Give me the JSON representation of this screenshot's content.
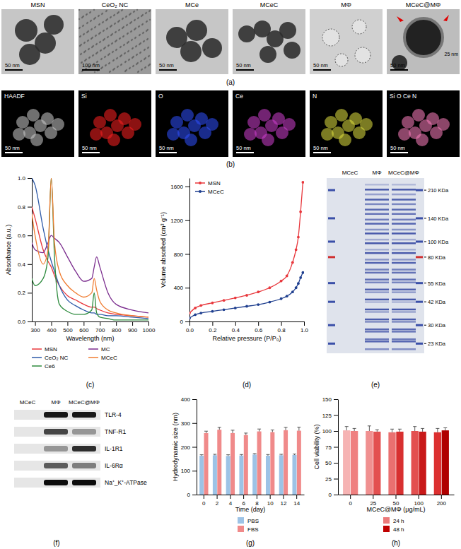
{
  "images": {
    "a": {
      "label": "(a)",
      "items": [
        {
          "title": "MSN",
          "scale_bar": "50 nm"
        },
        {
          "title": "CeO₂ NC",
          "scale_bar": "100 nm"
        },
        {
          "title": "MCe",
          "scale_bar": "50 nm"
        },
        {
          "title": "MCeC",
          "scale_bar": "50 nm"
        },
        {
          "title": "MΦ",
          "scale_bar": "50 nm"
        },
        {
          "title": "MCeC@MΦ",
          "scale_bar": "50 nm",
          "inset_scale_bar": "25 nm"
        }
      ]
    },
    "b": {
      "label": "(b)",
      "items": [
        {
          "title": "HAADF",
          "scale_bar": "50 nm"
        },
        {
          "title": "Si",
          "scale_bar": "50 nm"
        },
        {
          "title": "O",
          "scale_bar": "50 nm"
        },
        {
          "title": "Ce",
          "scale_bar": "50 nm"
        },
        {
          "title": "N",
          "scale_bar": "50 nm"
        },
        {
          "title": "Si O Ce N",
          "scale_bar": "50 nm"
        }
      ]
    },
    "e": {
      "label": "(e)",
      "lanes": [
        "MCeC",
        "MΦ",
        "MCeC@MΦ"
      ],
      "markers": [
        {
          "value": 210,
          "label": "210 KDa"
        },
        {
          "value": 140,
          "label": "140 KDa"
        },
        {
          "value": 100,
          "label": "100 KDa"
        },
        {
          "value": 80,
          "label": "80 KDa"
        },
        {
          "value": 55,
          "label": "55 KDa"
        },
        {
          "value": 42,
          "label": "42 KDa"
        },
        {
          "value": 30,
          "label": "30 KDa"
        },
        {
          "value": 23,
          "label": "23 KDa"
        }
      ]
    },
    "f": {
      "label": "(f)",
      "lanes": [
        "MCeC",
        "MΦ",
        "MCeC@MΦ"
      ],
      "rows": [
        "TLR-4",
        "TNF-R1",
        "IL-1R1",
        "IL-6Rα",
        "Na⁺_K⁺-ATPase"
      ]
    }
  },
  "chart_data": [
    {
      "type": "line",
      "title": "(c)",
      "x_label": "Wavelength (nm)",
      "y_label": "Absorbance (a.u.)",
      "x": [
        280,
        300,
        350,
        380,
        400,
        420,
        450,
        500,
        550,
        600,
        650,
        665,
        680,
        700,
        750,
        800,
        900,
        1000
      ],
      "xlim": [
        280,
        1000
      ],
      "xticks": [
        300,
        400,
        500,
        600,
        700,
        800,
        900,
        1000
      ],
      "ylim": [
        0,
        1.0
      ],
      "yticks": [
        {
          "value": 0,
          "label": "0.0"
        },
        {
          "value": 0.2,
          "label": "0.2"
        },
        {
          "value": 0.4,
          "label": "0.4"
        },
        {
          "value": 0.6,
          "label": "0.6"
        },
        {
          "value": 0.8,
          "label": "0.8"
        },
        {
          "value": 1.0,
          "label": "1.0"
        }
      ],
      "legend": "bottom",
      "series": [
        {
          "name": "MSN",
          "color": "#e8383d",
          "values": [
            0.8,
            0.72,
            0.5,
            0.42,
            0.38,
            0.32,
            0.25,
            0.18,
            0.15,
            0.12,
            0.1,
            0.1,
            0.09,
            0.08,
            0.06,
            0.05,
            0.04,
            0.03
          ]
        },
        {
          "name": "CeO₂ NC",
          "color": "#2e5aa8",
          "values": [
            1.0,
            0.95,
            0.65,
            0.5,
            0.42,
            0.35,
            0.25,
            0.15,
            0.11,
            0.08,
            0.06,
            0.06,
            0.05,
            0.05,
            0.04,
            0.04,
            0.03,
            0.02
          ]
        },
        {
          "name": "Ce6",
          "color": "#2e8b3e",
          "values": [
            0.3,
            0.25,
            0.3,
            0.45,
            1.0,
            0.45,
            0.12,
            0.07,
            0.05,
            0.05,
            0.08,
            0.2,
            0.06,
            0.03,
            0.02,
            0.01,
            0.01,
            0.01
          ]
        },
        {
          "name": "MC",
          "color": "#7b2d8e",
          "values": [
            0.55,
            0.5,
            0.48,
            0.55,
            0.6,
            0.58,
            0.55,
            0.45,
            0.35,
            0.28,
            0.3,
            0.38,
            0.45,
            0.38,
            0.2,
            0.12,
            0.08,
            0.06
          ]
        },
        {
          "name": "MCeC",
          "color": "#f07d32",
          "values": [
            0.75,
            0.6,
            0.4,
            0.5,
            1.0,
            0.55,
            0.35,
            0.25,
            0.2,
            0.17,
            0.2,
            0.3,
            0.22,
            0.14,
            0.08,
            0.06,
            0.04,
            0.03
          ]
        }
      ]
    },
    {
      "type": "line",
      "title": "(d)",
      "x_label": "Relative pressure (P/P₀)",
      "y_label": "Volume absorbed (cm³ g⁻¹)",
      "x": [
        0,
        0.05,
        0.1,
        0.2,
        0.3,
        0.4,
        0.5,
        0.6,
        0.7,
        0.8,
        0.85,
        0.9,
        0.93,
        0.95,
        0.97,
        0.99
      ],
      "xlim": [
        0,
        1.0
      ],
      "xticks": [
        {
          "value": 0,
          "label": "0.0"
        },
        {
          "value": 0.2,
          "label": "0.2"
        },
        {
          "value": 0.4,
          "label": "0.4"
        },
        {
          "value": 0.6,
          "label": "0.6"
        },
        {
          "value": 0.8,
          "label": "0.8"
        },
        {
          "value": 1.0,
          "label": "1.0"
        }
      ],
      "ylim": [
        0,
        1700
      ],
      "yticks": [
        0,
        400,
        800,
        1200,
        1600
      ],
      "legend": "upper left",
      "series": [
        {
          "name": "MSN",
          "color": "#e8383d",
          "marker": "circle",
          "values": [
            100,
            160,
            190,
            220,
            250,
            280,
            310,
            350,
            400,
            480,
            540,
            700,
            850,
            1000,
            1300,
            1650
          ]
        },
        {
          "name": "MCeC",
          "color": "#1f3f8f",
          "marker": "circle",
          "values": [
            40,
            80,
            100,
            120,
            140,
            160,
            180,
            200,
            230,
            270,
            300,
            350,
            400,
            450,
            520,
            580
          ]
        }
      ]
    },
    {
      "type": "bar",
      "title": "(g)",
      "x_label": "Time (day)",
      "y_label": "Hydrodynamic size (nm)",
      "categories": [
        "0",
        "2",
        "4",
        "6",
        "8",
        "10",
        "12",
        "14"
      ],
      "ylim": [
        0,
        400
      ],
      "yticks": [
        0,
        100,
        200,
        300,
        400
      ],
      "legend": "bottom",
      "series": [
        {
          "name": "PBS",
          "color": "#9dc3e6",
          "values": [
            163,
            165,
            162,
            164,
            168,
            163,
            165,
            166
          ],
          "errors": [
            4,
            4,
            5,
            4,
            4,
            5,
            4,
            4
          ]
        },
        {
          "name": "FBS",
          "color": "#f08a8a",
          "values": [
            258,
            272,
            258,
            250,
            265,
            262,
            270,
            268
          ],
          "errors": [
            8,
            10,
            12,
            8,
            10,
            9,
            12,
            15
          ]
        }
      ]
    },
    {
      "type": "bar",
      "title": "(h)",
      "x_label": "MCeC@MΦ (μg/mL)",
      "y_label": "Cell viability (%)",
      "categories": [
        "0",
        "25",
        "50",
        "100",
        "200"
      ],
      "ylim": [
        0,
        150
      ],
      "yticks": [
        0,
        25,
        50,
        75,
        100,
        125,
        150
      ],
      "legend": "bottom",
      "series": [
        {
          "name": "24 h",
          "color": "#ec7a7a",
          "colors": [
            "#f6b3b3",
            "#f09090",
            "#ea7070",
            "#e35050",
            "#dc3030"
          ],
          "values": [
            101,
            100,
            98,
            100,
            98
          ],
          "errors": [
            6,
            8,
            5,
            7,
            6
          ]
        },
        {
          "name": "48 h",
          "color": "#c00000",
          "colors": [
            "#ef8080",
            "#e35050",
            "#d83030",
            "#c81818",
            "#b00000"
          ],
          "values": [
            100,
            99,
            99,
            99,
            101
          ],
          "errors": [
            4,
            3,
            4,
            5,
            4
          ]
        }
      ]
    }
  ]
}
